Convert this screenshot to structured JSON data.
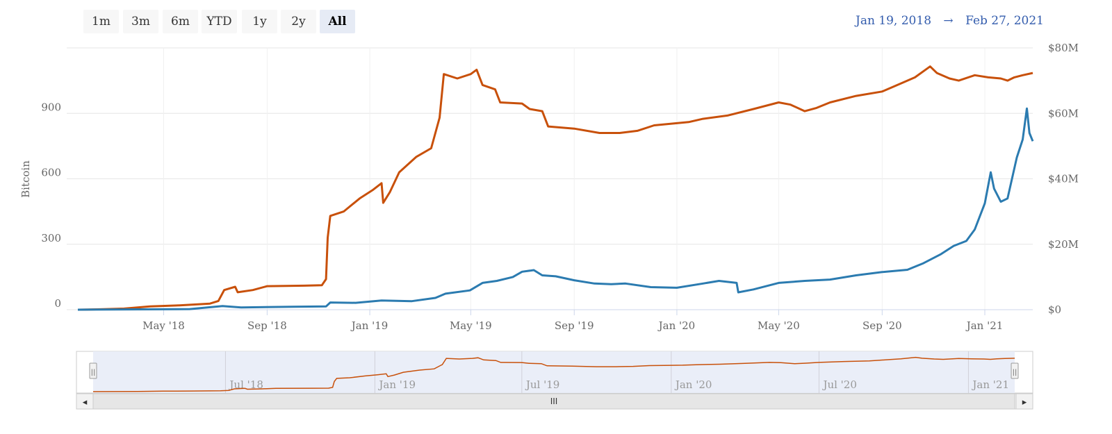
{
  "range_selector": {
    "buttons": [
      "1m",
      "3m",
      "6m",
      "YTD",
      "1y",
      "2y",
      "All"
    ],
    "selected": "All"
  },
  "date_range": {
    "from": "Jan 19, 2018",
    "arrow": "→",
    "to": "Feb 27, 2021"
  },
  "colors": {
    "btc_series": "#c8500a",
    "usd_series": "#2b7bb0",
    "navigator_mask": "#e8ecf7",
    "grid": "#e6e6e6",
    "selected_button": "#e6ebf5"
  },
  "chart_data": {
    "type": "line",
    "x_start": "2018-01-19",
    "x_end": "2021-02-27",
    "xaxis": {
      "tick_labels": [
        "May '18",
        "Sep '18",
        "Jan '19",
        "May '19",
        "Sep '19",
        "Jan '20",
        "May '20",
        "Sep '20",
        "Jan '21"
      ],
      "tick_dates": [
        "2018-05-01",
        "2018-09-01",
        "2019-01-01",
        "2019-05-01",
        "2019-09-01",
        "2020-01-01",
        "2020-05-01",
        "2020-09-01",
        "2021-01-01"
      ]
    },
    "yaxis_left": {
      "label": "Bitcoin",
      "ticks": [
        0,
        300,
        600,
        900
      ],
      "tick_labels": [
        "0",
        "300",
        "600",
        "900"
      ],
      "range": [
        0,
        1200
      ]
    },
    "yaxis_right": {
      "ticks": [
        0,
        20000000,
        40000000,
        60000000,
        80000000
      ],
      "tick_labels": [
        "$0",
        "$20M",
        "$40M",
        "$60M",
        "$80M"
      ],
      "range": [
        0,
        80000000
      ]
    },
    "grid": true,
    "series": [
      {
        "axis": "left",
        "points": [
          [
            "2018-01-19",
            0
          ],
          [
            "2018-02-15",
            2
          ],
          [
            "2018-03-15",
            5
          ],
          [
            "2018-04-15",
            15
          ],
          [
            "2018-05-20",
            20
          ],
          [
            "2018-06-25",
            28
          ],
          [
            "2018-07-05",
            40
          ],
          [
            "2018-07-12",
            90
          ],
          [
            "2018-07-25",
            105
          ],
          [
            "2018-07-28",
            80
          ],
          [
            "2018-08-15",
            90
          ],
          [
            "2018-09-01",
            108
          ],
          [
            "2018-10-15",
            110
          ],
          [
            "2018-11-05",
            112
          ],
          [
            "2018-11-10",
            140
          ],
          [
            "2018-11-12",
            330
          ],
          [
            "2018-11-15",
            430
          ],
          [
            "2018-12-01",
            450
          ],
          [
            "2018-12-20",
            510
          ],
          [
            "2019-01-05",
            550
          ],
          [
            "2019-01-15",
            580
          ],
          [
            "2019-01-17",
            490
          ],
          [
            "2019-01-25",
            540
          ],
          [
            "2019-02-05",
            630
          ],
          [
            "2019-02-25",
            700
          ],
          [
            "2019-03-15",
            740
          ],
          [
            "2019-03-25",
            880
          ],
          [
            "2019-03-30",
            1080
          ],
          [
            "2019-04-15",
            1060
          ],
          [
            "2019-05-01",
            1080
          ],
          [
            "2019-05-08",
            1100
          ],
          [
            "2019-05-15",
            1030
          ],
          [
            "2019-05-30",
            1010
          ],
          [
            "2019-06-05",
            950
          ],
          [
            "2019-07-01",
            945
          ],
          [
            "2019-07-10",
            920
          ],
          [
            "2019-07-25",
            910
          ],
          [
            "2019-08-01",
            840
          ],
          [
            "2019-09-01",
            830
          ],
          [
            "2019-10-01",
            810
          ],
          [
            "2019-10-25",
            810
          ],
          [
            "2019-11-15",
            820
          ],
          [
            "2019-12-05",
            845
          ],
          [
            "2020-01-01",
            855
          ],
          [
            "2020-01-15",
            860
          ],
          [
            "2020-02-01",
            875
          ],
          [
            "2020-03-01",
            890
          ],
          [
            "2020-04-01",
            920
          ],
          [
            "2020-05-01",
            950
          ],
          [
            "2020-05-15",
            940
          ],
          [
            "2020-06-01",
            910
          ],
          [
            "2020-06-15",
            925
          ],
          [
            "2020-07-01",
            950
          ],
          [
            "2020-08-01",
            980
          ],
          [
            "2020-09-01",
            1000
          ],
          [
            "2020-09-25",
            1040
          ],
          [
            "2020-10-10",
            1065
          ],
          [
            "2020-10-28",
            1115
          ],
          [
            "2020-11-05",
            1085
          ],
          [
            "2020-11-20",
            1060
          ],
          [
            "2020-12-01",
            1050
          ],
          [
            "2020-12-20",
            1075
          ],
          [
            "2021-01-05",
            1065
          ],
          [
            "2021-01-20",
            1060
          ],
          [
            "2021-01-28",
            1050
          ],
          [
            "2021-02-05",
            1065
          ],
          [
            "2021-02-15",
            1075
          ],
          [
            "2021-02-27",
            1085
          ]
        ]
      },
      {
        "axis": "right",
        "points": [
          [
            "2018-01-19",
            0
          ],
          [
            "2018-04-01",
            100000
          ],
          [
            "2018-06-01",
            200000
          ],
          [
            "2018-07-10",
            1100000
          ],
          [
            "2018-08-01",
            700000
          ],
          [
            "2018-10-01",
            900000
          ],
          [
            "2018-11-10",
            1000000
          ],
          [
            "2018-11-15",
            2200000
          ],
          [
            "2018-12-15",
            2100000
          ],
          [
            "2019-01-15",
            2800000
          ],
          [
            "2019-02-20",
            2600000
          ],
          [
            "2019-03-20",
            3600000
          ],
          [
            "2019-04-01",
            4900000
          ],
          [
            "2019-04-30",
            5900000
          ],
          [
            "2019-05-15",
            8200000
          ],
          [
            "2019-06-01",
            8800000
          ],
          [
            "2019-06-20",
            10000000
          ],
          [
            "2019-07-01",
            11600000
          ],
          [
            "2019-07-15",
            12100000
          ],
          [
            "2019-07-25",
            10500000
          ],
          [
            "2019-08-10",
            10200000
          ],
          [
            "2019-09-01",
            9000000
          ],
          [
            "2019-09-25",
            8000000
          ],
          [
            "2019-10-15",
            7800000
          ],
          [
            "2019-11-01",
            8000000
          ],
          [
            "2019-12-01",
            6900000
          ],
          [
            "2020-01-01",
            6700000
          ],
          [
            "2020-02-01",
            8000000
          ],
          [
            "2020-02-20",
            8800000
          ],
          [
            "2020-03-12",
            8200000
          ],
          [
            "2020-03-14",
            5300000
          ],
          [
            "2020-04-01",
            6200000
          ],
          [
            "2020-05-01",
            8200000
          ],
          [
            "2020-06-01",
            8800000
          ],
          [
            "2020-07-01",
            9200000
          ],
          [
            "2020-08-01",
            10500000
          ],
          [
            "2020-09-01",
            11500000
          ],
          [
            "2020-10-01",
            12200000
          ],
          [
            "2020-10-20",
            14200000
          ],
          [
            "2020-11-10",
            17000000
          ],
          [
            "2020-11-25",
            19500000
          ],
          [
            "2020-12-10",
            21000000
          ],
          [
            "2020-12-20",
            24500000
          ],
          [
            "2021-01-01",
            32500000
          ],
          [
            "2021-01-08",
            42000000
          ],
          [
            "2021-01-12",
            37000000
          ],
          [
            "2021-01-20",
            33000000
          ],
          [
            "2021-01-28",
            34000000
          ],
          [
            "2021-02-08",
            46500000
          ],
          [
            "2021-02-15",
            52000000
          ],
          [
            "2021-02-20",
            61500000
          ],
          [
            "2021-02-23",
            54000000
          ],
          [
            "2021-02-27",
            51500000
          ]
        ]
      }
    ],
    "navigator": {
      "tick_labels": [
        "Jul '18",
        "Jan '19",
        "Jul '19",
        "Jan '20",
        "Jul '20",
        "Jan '21"
      ],
      "tick_dates": [
        "2018-07-01",
        "2019-01-01",
        "2019-07-01",
        "2020-01-01",
        "2020-07-01",
        "2021-01-01"
      ],
      "scrollbar_grip": "III",
      "left_arrow": "◂",
      "right_arrow": "▸",
      "handle_glyph": "||"
    }
  }
}
